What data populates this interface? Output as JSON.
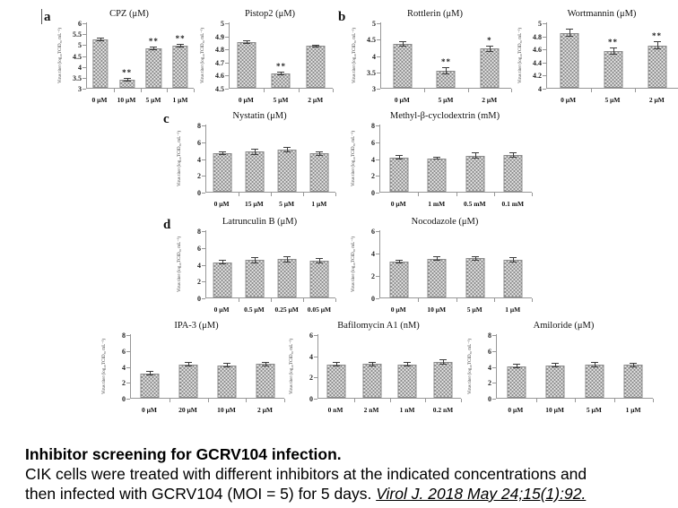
{
  "figure": {
    "panel_labels": {
      "a": "a",
      "b": "b",
      "c": "c",
      "d": "d"
    },
    "colors": {
      "bar_fill_dark": "#8d8d8d",
      "bar_fill_light": "#e4e4e4",
      "axis_color": "#979797",
      "text_color": "#111111"
    }
  },
  "chart_data": [
    {
      "id": "cpz",
      "type": "bar",
      "title": "CPZ (μM)",
      "ylabel": "Virus titer (log₁₀TCID₅₀ mL⁻¹)",
      "ylim": [
        3,
        6
      ],
      "yticks": [
        3,
        3.5,
        4,
        4.5,
        5,
        5.5,
        6
      ],
      "categories": [
        "0 μM",
        "10 μM",
        "5 μM",
        "1 μM"
      ],
      "values": [
        5.22,
        3.38,
        4.82,
        4.93
      ],
      "errors": [
        0.07,
        0.09,
        0.08,
        0.07
      ],
      "sig": [
        "",
        "**",
        "**",
        "**"
      ]
    },
    {
      "id": "pistop2",
      "type": "bar",
      "title": "Pistop2 (μM)",
      "ylabel": "Virus titer (log₁₀TCID₅₀ mL⁻¹)",
      "ylim": [
        4.5,
        5
      ],
      "yticks": [
        4.5,
        4.6,
        4.7,
        4.8,
        4.9,
        5
      ],
      "categories": [
        "0 μM",
        "5 μM",
        "2 μM"
      ],
      "values": [
        4.85,
        4.61,
        4.82
      ],
      "errors": [
        0.012,
        0.012,
        0.01
      ],
      "sig": [
        "",
        "**",
        ""
      ]
    },
    {
      "id": "rottlerin",
      "type": "bar",
      "title": "Rottlerin (μM)",
      "ylabel": "Virus titer (log₁₀TCID₅₀ mL⁻¹)",
      "ylim": [
        3,
        5
      ],
      "yticks": [
        3,
        3.5,
        4,
        4.5,
        5
      ],
      "categories": [
        "0 μM",
        "5 μM",
        "2 μM"
      ],
      "values": [
        4.35,
        3.52,
        4.2
      ],
      "errors": [
        0.08,
        0.1,
        0.09
      ],
      "sig": [
        "",
        "**",
        "*"
      ]
    },
    {
      "id": "wortmannin",
      "type": "bar",
      "title": "Wortmannin (μM)",
      "ylabel": "Virus titer (log₁₀TCID₅₀ mL⁻¹)",
      "ylim": [
        4,
        5
      ],
      "yticks": [
        4,
        4.2,
        4.4,
        4.6,
        4.8,
        5
      ],
      "categories": [
        "0 μM",
        "5 μM",
        "2 μM"
      ],
      "values": [
        4.84,
        4.56,
        4.65
      ],
      "errors": [
        0.06,
        0.05,
        0.06
      ],
      "sig": [
        "",
        "**",
        "**"
      ]
    },
    {
      "id": "nystatin",
      "type": "bar",
      "title": "Nystatin  (μM)",
      "ylabel": "Virus titer (log₁₀TCID₅₀ mL⁻¹)",
      "ylim": [
        0,
        8
      ],
      "yticks": [
        0,
        2,
        4,
        6,
        8
      ],
      "categories": [
        "0 μM",
        "15 μM",
        "5 μM",
        "1 μM"
      ],
      "values": [
        4.6,
        4.75,
        5.0,
        4.55
      ],
      "errors": [
        0.25,
        0.4,
        0.35,
        0.3
      ],
      "sig": [
        "",
        "",
        "",
        ""
      ]
    },
    {
      "id": "mbcd",
      "type": "bar",
      "title": "Methyl-β-cyclodextrin (mM)",
      "ylabel": "Virus titer (log₁₀TCID₅₀ mL⁻¹)",
      "ylim": [
        0,
        8
      ],
      "yticks": [
        0,
        2,
        4,
        6,
        8
      ],
      "categories": [
        "0 μM",
        "1 mM",
        "0.5 mM",
        "0.1 mM"
      ],
      "values": [
        4.1,
        4.0,
        4.3,
        4.35
      ],
      "errors": [
        0.25,
        0.2,
        0.35,
        0.3
      ],
      "sig": [
        "",
        "",
        "",
        ""
      ]
    },
    {
      "id": "latrunculin-b",
      "type": "bar",
      "title": "Latrunculin B (μM)",
      "ylabel": "Virus titer (log₁₀TCID₅₀ mL⁻¹)",
      "ylim": [
        0,
        8
      ],
      "yticks": [
        0,
        2,
        4,
        6,
        8
      ],
      "categories": [
        "0 μM",
        "0.5 μM",
        "0.25 μM",
        "0.05 μM"
      ],
      "values": [
        4.2,
        4.45,
        4.55,
        4.35
      ],
      "errors": [
        0.25,
        0.35,
        0.4,
        0.3
      ],
      "sig": [
        "",
        "",
        "",
        ""
      ]
    },
    {
      "id": "nocodazole",
      "type": "bar",
      "title": "Nocodazole (μM)",
      "ylabel": "Virus titer (log₁₀TCID₅₀ mL⁻¹)",
      "ylim": [
        0,
        6
      ],
      "yticks": [
        0,
        2,
        4,
        6
      ],
      "categories": [
        "0 μM",
        "10 μM",
        "5 μM",
        "1 μM"
      ],
      "values": [
        3.2,
        3.45,
        3.5,
        3.35
      ],
      "errors": [
        0.15,
        0.2,
        0.2,
        0.25
      ],
      "sig": [
        "",
        "",
        "",
        ""
      ]
    },
    {
      "id": "ipa3",
      "type": "bar",
      "title": "IPA-3 (μM)",
      "ylabel": "Virus titer (log₁₀TCID₅₀ mL⁻¹)",
      "ylim": [
        0,
        8
      ],
      "yticks": [
        0,
        2,
        4,
        6,
        8
      ],
      "categories": [
        "0 μM",
        "20 μM",
        "10 μM",
        "2 μM"
      ],
      "values": [
        3.1,
        4.2,
        4.1,
        4.25
      ],
      "errors": [
        0.3,
        0.3,
        0.25,
        0.3
      ],
      "sig": [
        "",
        "",
        "",
        ""
      ]
    },
    {
      "id": "bafilomycin-a1",
      "type": "bar",
      "title": "Bafilomycin A1 (nM)",
      "ylabel": "Virus titer (log₁₀TCID₅₀ mL⁻¹)",
      "ylim": [
        0,
        6
      ],
      "yticks": [
        0,
        2,
        4,
        6
      ],
      "categories": [
        "0 nM",
        "2 nM",
        "1 nM",
        "0.2 nM"
      ],
      "values": [
        3.15,
        3.2,
        3.15,
        3.35
      ],
      "errors": [
        0.2,
        0.2,
        0.2,
        0.25
      ],
      "sig": [
        "",
        "",
        "",
        ""
      ]
    },
    {
      "id": "amiloride",
      "type": "bar",
      "title": "Amiloride (μM)",
      "ylabel": "Virus titer (log₁₀TCID₅₀ mL⁻¹)",
      "ylim": [
        0,
        8
      ],
      "yticks": [
        0,
        2,
        4,
        6,
        8
      ],
      "categories": [
        "0 μM",
        "10 μM",
        "5 μM",
        "1 μM"
      ],
      "values": [
        4.0,
        4.1,
        4.2,
        4.15
      ],
      "errors": [
        0.3,
        0.25,
        0.35,
        0.3
      ],
      "sig": [
        "",
        "",
        "",
        ""
      ]
    }
  ],
  "caption": {
    "title": "Inhibitor screening for GCRV104 infection.",
    "line1": "CIK cells were treated with different inhibitors at the indicated concentrations and",
    "line2_text": "then infected with GCRV104 (MOI = 5) for 5 days. ",
    "citation": "Virol J. 2018 May 24;15(1):92."
  }
}
